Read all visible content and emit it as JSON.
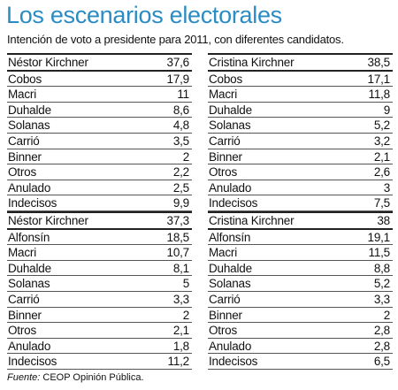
{
  "header": {
    "title": "Los escenarios electorales",
    "subtitle": "Intención de voto a presidente para 2011, con diferentes candidatos."
  },
  "tables": [
    {
      "rows": [
        [
          "Néstor Kirchner",
          "37,6"
        ],
        [
          "Cobos",
          "17,9"
        ],
        [
          "Macri",
          "11"
        ],
        [
          "Duhalde",
          "8,6"
        ],
        [
          "Solanas",
          "4,8"
        ],
        [
          "Carrió",
          "3,5"
        ],
        [
          "Binner",
          "2"
        ],
        [
          "Otros",
          "2,2"
        ],
        [
          "Anulado",
          "2,5"
        ],
        [
          "Indecisos",
          "9,9"
        ]
      ]
    },
    {
      "rows": [
        [
          "Cristina Kirchner",
          "38,5"
        ],
        [
          "Cobos",
          "17,1"
        ],
        [
          "Macri",
          "11,8"
        ],
        [
          "Duhalde",
          "9"
        ],
        [
          "Solanas",
          "5,2"
        ],
        [
          "Carrió",
          "3,2"
        ],
        [
          "Binner",
          "2,1"
        ],
        [
          "Otros",
          "2,6"
        ],
        [
          "Anulado",
          "3"
        ],
        [
          "Indecisos",
          "7,5"
        ]
      ]
    },
    {
      "rows": [
        [
          "Néstor Kirchner",
          "37,3"
        ],
        [
          "Alfonsín",
          "18,5"
        ],
        [
          "Macri",
          "10,7"
        ],
        [
          "Duhalde",
          "8,1"
        ],
        [
          "Solanas",
          "5"
        ],
        [
          "Carrió",
          "3,3"
        ],
        [
          "Binner",
          "2"
        ],
        [
          "Otros",
          "2,1"
        ],
        [
          "Anulado",
          "1,8"
        ],
        [
          "Indecisos",
          "11,2"
        ]
      ]
    },
    {
      "rows": [
        [
          "Cristina Kirchner",
          "38"
        ],
        [
          "Alfonsín",
          "19,1"
        ],
        [
          "Macri",
          "11,5"
        ],
        [
          "Duhalde",
          "8,8"
        ],
        [
          "Solanas",
          "5,2"
        ],
        [
          "Carrió",
          "3,3"
        ],
        [
          "Binner",
          "2"
        ],
        [
          "Otros",
          "2,8"
        ],
        [
          "Anulado",
          "2,8"
        ],
        [
          "Indecisos",
          "6,5"
        ]
      ]
    }
  ],
  "footer": {
    "label": "Fuente:",
    "source": "CEOP Opinión Pública."
  }
}
